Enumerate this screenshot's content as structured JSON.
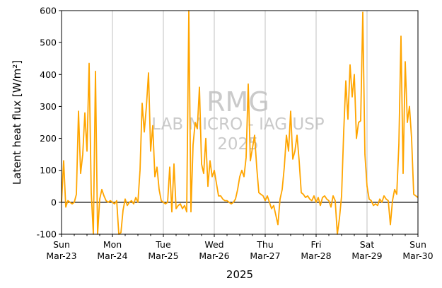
{
  "chart_data": {
    "type": "line",
    "title": "",
    "xlabel": "2025",
    "ylabel": "Latent heat flux [W/m²]",
    "ylim": [
      -100,
      600
    ],
    "xlim_days": [
      0,
      7
    ],
    "yticks": [
      -100,
      0,
      100,
      200,
      300,
      400,
      500,
      600
    ],
    "xticks": [
      {
        "day": "Sun",
        "date": "Mar-23"
      },
      {
        "day": "Mon",
        "date": "Mar-24"
      },
      {
        "day": "Tue",
        "date": "Mar-25"
      },
      {
        "day": "Wed",
        "date": "Mar-26"
      },
      {
        "day": "Thu",
        "date": "Mar-27"
      },
      {
        "day": "Fri",
        "date": "Mar-28"
      },
      {
        "day": "Sat",
        "date": "Mar-29"
      },
      {
        "day": "Sun",
        "date": "Mar-30"
      }
    ],
    "grid": "vertical",
    "zero_line": true,
    "line_color": "#ffa500",
    "watermark": [
      "RMG",
      "LAB MICRO - IAG USP",
      "2025"
    ],
    "series": [
      {
        "name": "",
        "x": [
          "2025-03-23 00:00",
          "2025-03-23 01:00",
          "2025-03-23 02:00",
          "2025-03-23 03:00",
          "2025-03-23 04:00",
          "2025-03-23 05:00",
          "2025-03-23 06:00",
          "2025-03-23 07:00",
          "2025-03-23 08:00",
          "2025-03-23 09:00",
          "2025-03-23 10:00",
          "2025-03-23 11:00",
          "2025-03-23 12:00",
          "2025-03-23 13:00",
          "2025-03-23 14:00",
          "2025-03-23 15:00",
          "2025-03-23 16:00",
          "2025-03-23 17:00",
          "2025-03-23 18:00",
          "2025-03-23 19:00",
          "2025-03-23 20:00",
          "2025-03-23 21:00",
          "2025-03-23 22:00",
          "2025-03-23 23:00",
          "2025-03-24 00:00",
          "2025-03-24 01:00",
          "2025-03-24 02:00",
          "2025-03-24 03:00",
          "2025-03-24 04:00",
          "2025-03-24 05:00",
          "2025-03-24 06:00",
          "2025-03-24 07:00",
          "2025-03-24 08:00",
          "2025-03-24 09:00",
          "2025-03-24 10:00",
          "2025-03-24 11:00",
          "2025-03-24 12:00",
          "2025-03-24 13:00",
          "2025-03-24 14:00",
          "2025-03-24 15:00",
          "2025-03-24 16:00",
          "2025-03-24 17:00",
          "2025-03-24 18:00",
          "2025-03-24 19:00",
          "2025-03-24 20:00",
          "2025-03-24 21:00",
          "2025-03-24 22:00",
          "2025-03-24 23:00",
          "2025-03-25 00:00",
          "2025-03-25 01:00",
          "2025-03-25 02:00",
          "2025-03-25 03:00",
          "2025-03-25 04:00",
          "2025-03-25 05:00",
          "2025-03-25 06:00",
          "2025-03-25 07:00",
          "2025-03-25 08:00",
          "2025-03-25 09:00",
          "2025-03-25 10:00",
          "2025-03-25 11:00",
          "2025-03-25 12:00",
          "2025-03-25 13:00",
          "2025-03-25 14:00",
          "2025-03-25 15:00",
          "2025-03-25 16:00",
          "2025-03-25 17:00",
          "2025-03-25 18:00",
          "2025-03-25 19:00",
          "2025-03-25 20:00",
          "2025-03-25 21:00",
          "2025-03-25 22:00",
          "2025-03-25 23:00",
          "2025-03-26 00:00",
          "2025-03-26 01:00",
          "2025-03-26 02:00",
          "2025-03-26 03:00",
          "2025-03-26 04:00",
          "2025-03-26 05:00",
          "2025-03-26 06:00",
          "2025-03-26 07:00",
          "2025-03-26 08:00",
          "2025-03-26 09:00",
          "2025-03-26 10:00",
          "2025-03-26 11:00",
          "2025-03-26 12:00",
          "2025-03-26 13:00",
          "2025-03-26 14:00",
          "2025-03-26 15:00",
          "2025-03-26 16:00",
          "2025-03-26 17:00",
          "2025-03-26 18:00",
          "2025-03-26 19:00",
          "2025-03-26 20:00",
          "2025-03-26 21:00",
          "2025-03-26 22:00",
          "2025-03-26 23:00",
          "2025-03-27 00:00",
          "2025-03-27 01:00",
          "2025-03-27 02:00",
          "2025-03-27 03:00",
          "2025-03-27 04:00",
          "2025-03-27 05:00",
          "2025-03-27 06:00",
          "2025-03-27 07:00",
          "2025-03-27 08:00",
          "2025-03-27 09:00",
          "2025-03-27 10:00",
          "2025-03-27 11:00",
          "2025-03-27 12:00",
          "2025-03-27 13:00",
          "2025-03-27 14:00",
          "2025-03-27 15:00",
          "2025-03-27 16:00",
          "2025-03-27 17:00",
          "2025-03-27 18:00",
          "2025-03-27 19:00",
          "2025-03-27 20:00",
          "2025-03-27 21:00",
          "2025-03-27 22:00",
          "2025-03-27 23:00",
          "2025-03-28 00:00",
          "2025-03-28 01:00",
          "2025-03-28 02:00",
          "2025-03-28 03:00",
          "2025-03-28 04:00",
          "2025-03-28 05:00",
          "2025-03-28 06:00",
          "2025-03-28 07:00",
          "2025-03-28 08:00",
          "2025-03-28 09:00",
          "2025-03-28 10:00",
          "2025-03-28 11:00",
          "2025-03-28 12:00",
          "2025-03-28 13:00",
          "2025-03-28 14:00",
          "2025-03-28 15:00",
          "2025-03-28 16:00",
          "2025-03-28 17:00",
          "2025-03-28 18:00",
          "2025-03-28 19:00",
          "2025-03-28 20:00",
          "2025-03-28 21:00",
          "2025-03-28 22:00",
          "2025-03-28 23:00",
          "2025-03-29 00:00",
          "2025-03-29 01:00",
          "2025-03-29 02:00",
          "2025-03-29 03:00",
          "2025-03-29 04:00",
          "2025-03-29 05:00",
          "2025-03-29 06:00",
          "2025-03-29 07:00",
          "2025-03-29 08:00",
          "2025-03-29 09:00",
          "2025-03-29 10:00",
          "2025-03-29 11:00",
          "2025-03-29 12:00",
          "2025-03-29 13:00",
          "2025-03-29 14:00",
          "2025-03-29 15:00",
          "2025-03-29 16:00",
          "2025-03-29 17:00",
          "2025-03-29 18:00",
          "2025-03-29 19:00",
          "2025-03-29 20:00",
          "2025-03-29 21:00",
          "2025-03-29 22:00",
          "2025-03-29 23:00",
          "2025-03-30 00:00"
        ],
        "y": [
          0,
          130,
          -15,
          5,
          0,
          -5,
          0,
          25,
          285,
          90,
          150,
          280,
          160,
          435,
          30,
          -100,
          410,
          -100,
          10,
          40,
          20,
          5,
          0,
          5,
          0,
          -5,
          5,
          -100,
          -95,
          -25,
          10,
          -10,
          0,
          5,
          -5,
          15,
          0,
          100,
          310,
          220,
          300,
          405,
          160,
          240,
          80,
          110,
          40,
          5,
          0,
          -5,
          0,
          110,
          -30,
          120,
          -20,
          -10,
          -5,
          -20,
          -10,
          -30,
          600,
          -30,
          180,
          250,
          230,
          360,
          120,
          90,
          200,
          50,
          130,
          80,
          100,
          60,
          20,
          20,
          10,
          5,
          5,
          0,
          -5,
          0,
          10,
          40,
          80,
          100,
          80,
          140,
          370,
          130,
          170,
          210,
          110,
          30,
          25,
          20,
          5,
          20,
          0,
          -20,
          -10,
          -40,
          -70,
          10,
          40,
          110,
          210,
          160,
          285,
          135,
          160,
          210,
          130,
          30,
          25,
          15,
          20,
          10,
          5,
          20,
          0,
          15,
          -10,
          15,
          20,
          10,
          5,
          -15,
          20,
          5,
          -100,
          -50,
          20,
          220,
          380,
          260,
          430,
          330,
          400,
          200,
          250,
          255,
          595,
          150,
          50,
          10,
          5,
          -10,
          -5,
          -10,
          10,
          0,
          20,
          10,
          5,
          -70,
          5,
          40,
          25,
          180,
          520,
          90,
          440,
          250,
          300,
          200,
          25,
          20,
          15
        ]
      }
    ]
  }
}
